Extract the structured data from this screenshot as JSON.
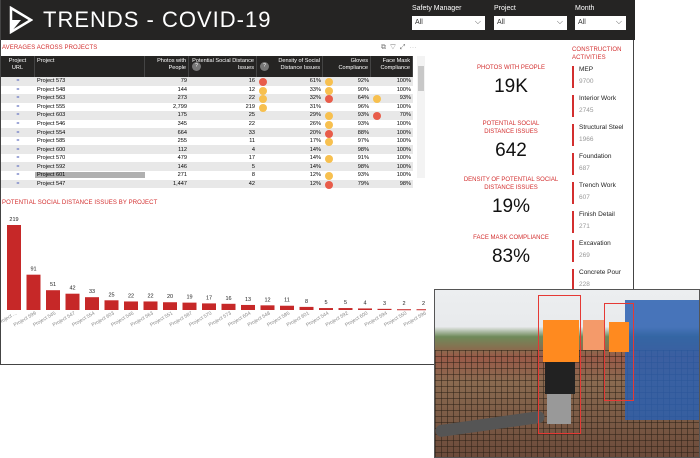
{
  "header": {
    "title": "TRENDS - COVID-19"
  },
  "filters": [
    {
      "label": "Safety Manager",
      "value": "All"
    },
    {
      "label": "Project",
      "value": "All"
    },
    {
      "label": "Month",
      "value": "All"
    }
  ],
  "table": {
    "title": "AVERAGES ACROSS PROJECTS",
    "columns": [
      "Project URL",
      "Project",
      "Photos with People",
      "Potential Social Distance Issues",
      "Density of Social Distance Issues",
      "Gloves Compliance",
      "Face Mask Compliance"
    ],
    "rows": [
      [
        "Project 573",
        "79",
        "16",
        "61%",
        "92%",
        "100%",
        "#e85c4a",
        "#f7c04f",
        ""
      ],
      [
        "Project 548",
        "144",
        "12",
        "33%",
        "90%",
        "100%",
        "#f7c04f",
        "#f7c04f",
        ""
      ],
      [
        "Project 563",
        "273",
        "22",
        "32%",
        "64%",
        "93%",
        "#f7c04f",
        "#e85c4a",
        "#f7c04f"
      ],
      [
        "Project 555",
        "2,799",
        "219",
        "31%",
        "96%",
        "100%",
        "#f7c04f",
        "",
        ""
      ],
      [
        "Project 603",
        "175",
        "25",
        "29%",
        "93%",
        "70%",
        "",
        "#f7c04f",
        "#e85c4a"
      ],
      [
        "Project 546",
        "345",
        "22",
        "26%",
        "93%",
        "100%",
        "",
        "#f7c04f",
        ""
      ],
      [
        "Project 554",
        "664",
        "33",
        "20%",
        "88%",
        "100%",
        "",
        "#e85c4a",
        ""
      ],
      [
        "Project 585",
        "255",
        "11",
        "17%",
        "97%",
        "100%",
        "",
        "#f7c04f",
        ""
      ],
      [
        "Project 600",
        "112",
        "4",
        "14%",
        "98%",
        "100%",
        "",
        "",
        ""
      ],
      [
        "Project 570",
        "479",
        "17",
        "14%",
        "91%",
        "100%",
        "",
        "#f7c04f",
        ""
      ],
      [
        "Project 592",
        "146",
        "5",
        "14%",
        "98%",
        "100%",
        "",
        "",
        ""
      ],
      [
        "Project 601",
        "271",
        "8",
        "12%",
        "93%",
        "100%",
        "",
        "#f7c04f",
        ""
      ],
      [
        "Project 547",
        "1,447",
        "42",
        "12%",
        "79%",
        "98%",
        "",
        "#e85c4a",
        ""
      ]
    ]
  },
  "kpis": [
    {
      "label": "PHOTOS WITH PEOPLE",
      "value": "19K"
    },
    {
      "label": "POTENTIAL SOCIAL DISTANCE ISSUES",
      "value": "642"
    },
    {
      "label": "DENSITY OF POTENTIAL SOCIAL DISTANCE ISSUES",
      "value": "19%"
    },
    {
      "label": "FACE MASK COMPLIANCE",
      "value": "83%"
    }
  ],
  "activities": {
    "title": "CONSTRUCTION ACTIVITIES",
    "items": [
      {
        "name": "MEP",
        "count": "9700"
      },
      {
        "name": "Interior Work",
        "count": "2745"
      },
      {
        "name": "Structural Steel",
        "count": "1966"
      },
      {
        "name": "Foundation",
        "count": "687"
      },
      {
        "name": "Trench Work",
        "count": "607"
      },
      {
        "name": "Finish Detail",
        "count": "271"
      },
      {
        "name": "Excavation",
        "count": "269"
      },
      {
        "name": "Concrete Pour",
        "count": "228"
      }
    ]
  },
  "chart_data": {
    "type": "bar",
    "title": "POTENTIAL SOCIAL DISTANCE ISSUES BY PROJECT",
    "categories": [
      "Project ...",
      "Project 599",
      "Project 545",
      "Project 547",
      "Project 554",
      "Project 603",
      "Project 546",
      "Project 563",
      "Project 551",
      "Project 587",
      "Project 570",
      "Project 573",
      "Project 604",
      "Project 548",
      "Project 585",
      "Project 601",
      "Project 544",
      "Project 592",
      "Project 600",
      "Project 594",
      "Project 550",
      "Project 596"
    ],
    "values": [
      219,
      91,
      51,
      42,
      33,
      25,
      22,
      22,
      20,
      19,
      17,
      16,
      13,
      12,
      11,
      8,
      5,
      5,
      4,
      3,
      2,
      2
    ],
    "ylim": [
      0,
      219
    ],
    "color": "#c62828"
  },
  "colors": {
    "accent": "#d32f2f",
    "header": "#252423"
  }
}
